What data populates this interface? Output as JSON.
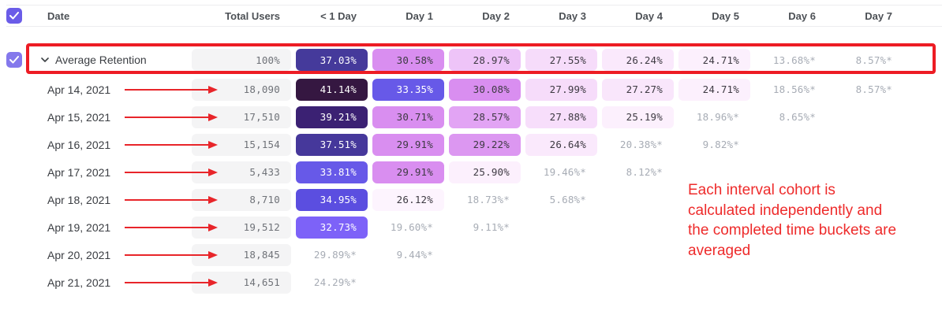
{
  "table": {
    "columns": [
      "Date",
      "Total Users",
      "< 1 Day",
      "Day 1",
      "Day 2",
      "Day 3",
      "Day 4",
      "Day 5",
      "Day 6",
      "Day 7"
    ],
    "rows": [
      {
        "is_average": true,
        "label": "Average Retention",
        "total": "100%",
        "cells": [
          {
            "v": "37.03%",
            "bg": "#453a9b",
            "fg": "#ffffff"
          },
          {
            "v": "30.58%",
            "bg": "#d98ef0",
            "fg": "#3e3a43"
          },
          {
            "v": "28.97%",
            "bg": "#eec4f8",
            "fg": "#3e3a43"
          },
          {
            "v": "27.55%",
            "bg": "#f6dcfa",
            "fg": "#3e3a43"
          },
          {
            "v": "26.24%",
            "bg": "#fae9fc",
            "fg": "#3e3a43"
          },
          {
            "v": "24.71%",
            "bg": "#fcf0fd",
            "fg": "#3e3a43"
          },
          {
            "v": "13.68%*",
            "bg": null,
            "fg": "#a7acb5"
          },
          {
            "v": "8.57%*",
            "bg": null,
            "fg": "#a7acb5"
          }
        ]
      },
      {
        "label": "Apr 14, 2021",
        "total": "18,090",
        "arrow": true,
        "cells": [
          {
            "v": "41.14%",
            "bg": "#351741",
            "fg": "#ffffff"
          },
          {
            "v": "33.35%",
            "bg": "#6759e8",
            "fg": "#ffffff"
          },
          {
            "v": "30.08%",
            "bg": "#d98ef0",
            "fg": "#3e3a43"
          },
          {
            "v": "27.99%",
            "bg": "#f6dcfa",
            "fg": "#3e3a43"
          },
          {
            "v": "27.27%",
            "bg": "#f9e6fb",
            "fg": "#3e3a43"
          },
          {
            "v": "24.71%",
            "bg": "#fcf0fd",
            "fg": "#3e3a43"
          },
          {
            "v": "18.56%*",
            "bg": null,
            "fg": "#a7acb5"
          },
          {
            "v": "8.57%*",
            "bg": null,
            "fg": "#a7acb5"
          }
        ]
      },
      {
        "label": "Apr 15, 2021",
        "total": "17,510",
        "arrow": true,
        "cells": [
          {
            "v": "39.21%",
            "bg": "#3b2173",
            "fg": "#ffffff"
          },
          {
            "v": "30.71%",
            "bg": "#d98ef0",
            "fg": "#3e3a43"
          },
          {
            "v": "28.57%",
            "bg": "#e2a4f4",
            "fg": "#3e3a43"
          },
          {
            "v": "27.88%",
            "bg": "#f7defb",
            "fg": "#3e3a43"
          },
          {
            "v": "25.19%",
            "bg": "#fcf0fd",
            "fg": "#3e3a43"
          },
          {
            "v": "18.96%*",
            "bg": null,
            "fg": "#a7acb5"
          },
          {
            "v": "8.65%*",
            "bg": null,
            "fg": "#a7acb5"
          },
          null
        ]
      },
      {
        "label": "Apr 16, 2021",
        "total": "15,154",
        "arrow": true,
        "cells": [
          {
            "v": "37.51%",
            "bg": "#46389b",
            "fg": "#ffffff"
          },
          {
            "v": "29.91%",
            "bg": "#d98ef0",
            "fg": "#3e3a43"
          },
          {
            "v": "29.22%",
            "bg": "#dc97f1",
            "fg": "#3e3a43"
          },
          {
            "v": "26.64%",
            "bg": "#fae9fc",
            "fg": "#3e3a43"
          },
          {
            "v": "20.38%*",
            "bg": null,
            "fg": "#a7acb5"
          },
          {
            "v": "9.82%*",
            "bg": null,
            "fg": "#a7acb5"
          },
          null,
          null
        ]
      },
      {
        "label": "Apr 17, 2021",
        "total": "5,433",
        "arrow": true,
        "cells": [
          {
            "v": "33.81%",
            "bg": "#6759e8",
            "fg": "#ffffff"
          },
          {
            "v": "29.91%",
            "bg": "#d98ef0",
            "fg": "#3e3a43"
          },
          {
            "v": "25.90%",
            "bg": "#fcf0fd",
            "fg": "#3e3a43"
          },
          {
            "v": "19.46%*",
            "bg": null,
            "fg": "#a7acb5"
          },
          {
            "v": "8.12%*",
            "bg": null,
            "fg": "#a7acb5"
          },
          null,
          null,
          null
        ]
      },
      {
        "label": "Apr 18, 2021",
        "total": "8,710",
        "arrow": true,
        "cells": [
          {
            "v": "34.95%",
            "bg": "#5b4ee0",
            "fg": "#ffffff"
          },
          {
            "v": "26.12%",
            "bg": "#fdf4fe",
            "fg": "#3e3a43"
          },
          {
            "v": "18.73%*",
            "bg": null,
            "fg": "#a7acb5"
          },
          {
            "v": "5.68%*",
            "bg": null,
            "fg": "#a7acb5"
          },
          null,
          null,
          null,
          null
        ]
      },
      {
        "label": "Apr 19, 2021",
        "total": "19,512",
        "arrow": true,
        "cells": [
          {
            "v": "32.73%",
            "bg": "#7d62f8",
            "fg": "#ffffff"
          },
          {
            "v": "19.60%*",
            "bg": null,
            "fg": "#a7acb5"
          },
          {
            "v": "9.11%*",
            "bg": null,
            "fg": "#a7acb5"
          },
          null,
          null,
          null,
          null,
          null
        ]
      },
      {
        "label": "Apr 20, 2021",
        "total": "18,845",
        "arrow": true,
        "cells": [
          {
            "v": "29.89%*",
            "bg": null,
            "fg": "#a7acb5"
          },
          {
            "v": "9.44%*",
            "bg": null,
            "fg": "#a7acb5"
          },
          null,
          null,
          null,
          null,
          null,
          null
        ]
      },
      {
        "label": "Apr 21, 2021",
        "total": "14,651",
        "arrow": true,
        "cells": [
          {
            "v": "24.29%*",
            "bg": null,
            "fg": "#a7acb5"
          },
          null,
          null,
          null,
          null,
          null,
          null,
          null
        ]
      }
    ]
  },
  "annotation": {
    "text_lines": [
      "Each interval cohort is",
      "calculated independently and",
      "the completed time buckets are",
      "averaged"
    ],
    "color": "#ee2b2b"
  },
  "colors": {
    "checkbox_header": "#6a5ce8",
    "checkbox_average": "#8478ec",
    "highlight_border": "#ed1c24",
    "arrow_red": "#e8252a",
    "total_cell_bg": "#f4f4f5"
  }
}
